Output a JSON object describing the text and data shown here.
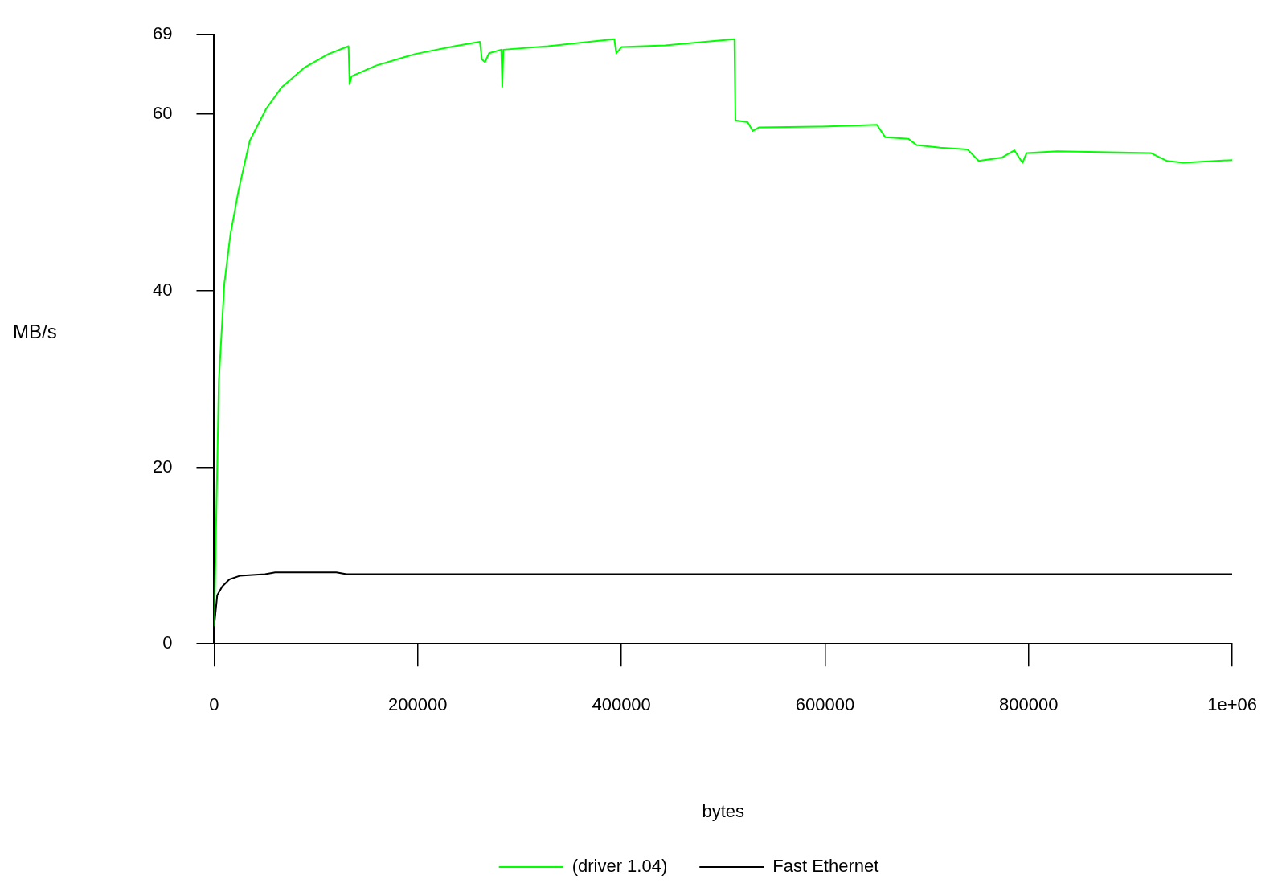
{
  "chart_data": {
    "type": "line",
    "xlabel": "bytes",
    "ylabel": "MB/s",
    "xlim": [
      0,
      1000000
    ],
    "ylim": [
      0,
      69
    ],
    "xticks": [
      0,
      200000,
      400000,
      600000,
      800000,
      {
        "value": 1000000,
        "label": "1e+06"
      }
    ],
    "yticks": [
      0,
      20,
      40,
      60,
      69
    ],
    "grid": false,
    "legend": "bottom",
    "marker": "none",
    "line_style": "solid",
    "series": [
      {
        "name": "(driver 1.04)",
        "color": "#00ff00",
        "x": [
          0,
          4600,
          10000,
          16000,
          24000,
          35000,
          51000,
          66000,
          89000,
          112000,
          132000,
          133000,
          135000,
          159000,
          197000,
          236000,
          261000,
          263000,
          266000,
          270000,
          282000,
          283000,
          284000,
          328000,
          393000,
          395000,
          400000,
          443000,
          511000,
          512000,
          524000,
          529000,
          535000,
          597000,
          651000,
          659000,
          682000,
          690000,
          713000,
          740000,
          751000,
          774000,
          786000,
          794000,
          798000,
          828000,
          920000,
          936000,
          952000,
          1000000
        ],
        "values": [
          2,
          29.8,
          40.8,
          46.4,
          51.4,
          57,
          60.6,
          63,
          65.3,
          66.8,
          67.7,
          63.4,
          64.3,
          65.5,
          66.8,
          67.7,
          68.2,
          66.2,
          65.9,
          66.9,
          67.3,
          63.1,
          67.3,
          67.7,
          68.5,
          66.9,
          67.6,
          67.8,
          68.5,
          59.3,
          59.1,
          58.1,
          58.5,
          58.6,
          58.8,
          57.4,
          57.2,
          56.5,
          56.2,
          56,
          54.7,
          55.1,
          55.9,
          54.5,
          55.6,
          55.8,
          55.6,
          54.7,
          54.5,
          54.8
        ]
      },
      {
        "name": "Fast Ethernet",
        "color": "#000000",
        "x": [
          0,
          3000,
          8000,
          15000,
          25000,
          50000,
          60000,
          120000,
          130000,
          1000000
        ],
        "values": [
          2,
          5.5,
          6.5,
          7.3,
          7.7,
          7.9,
          8.1,
          8.1,
          7.9,
          7.9
        ]
      }
    ]
  }
}
